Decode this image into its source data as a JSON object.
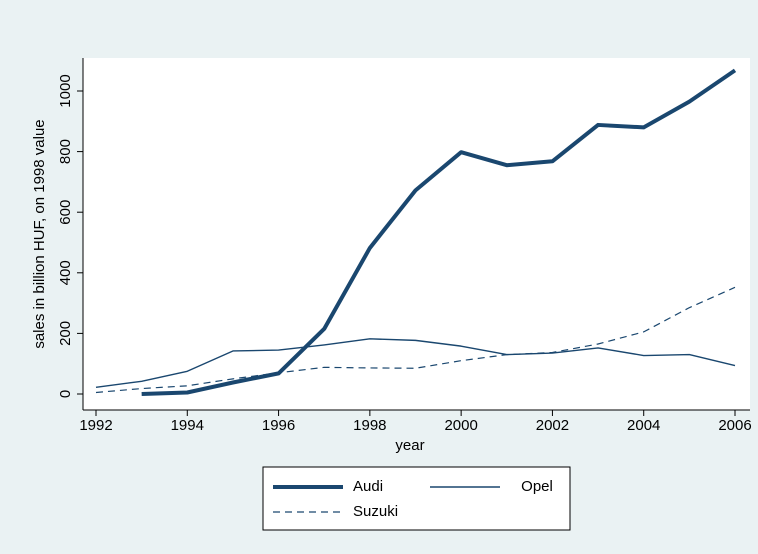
{
  "chart_data": {
    "type": "line",
    "x": [
      1992,
      1993,
      1994,
      1995,
      1996,
      1997,
      1998,
      1999,
      2000,
      2001,
      2002,
      2003,
      2004,
      2005,
      2006
    ],
    "series": [
      {
        "name": "Audi",
        "color": "#1a476f",
        "line_width": 4,
        "dash": "solid",
        "values": [
          null,
          0,
          5,
          38,
          68,
          215,
          482,
          672,
          798,
          755,
          768,
          888,
          880,
          965,
          1068
        ]
      },
      {
        "name": "Opel",
        "color": "#1a476f",
        "line_width": 1.4,
        "dash": "solid",
        "values": [
          22,
          42,
          75,
          142,
          145,
          162,
          182,
          177,
          158,
          130,
          135,
          152,
          127,
          130,
          94
        ]
      },
      {
        "name": "Suzuki",
        "color": "#1a476f",
        "line_width": 1.2,
        "dash": "dashed",
        "values": [
          5,
          18,
          27,
          50,
          70,
          88,
          86,
          85,
          110,
          130,
          137,
          165,
          205,
          285,
          352
        ]
      }
    ],
    "xlabel": "year",
    "ylabel": "sales in billion HUF, on 1998 value",
    "xlim": [
      1992,
      2006
    ],
    "xticks": [
      1992,
      1994,
      1996,
      1998,
      2000,
      2002,
      2004,
      2006
    ],
    "ylim": [
      0,
      1000
    ],
    "yticks": [
      0,
      200,
      400,
      600,
      800,
      1000
    ],
    "grid": false,
    "legend": "bottom"
  }
}
